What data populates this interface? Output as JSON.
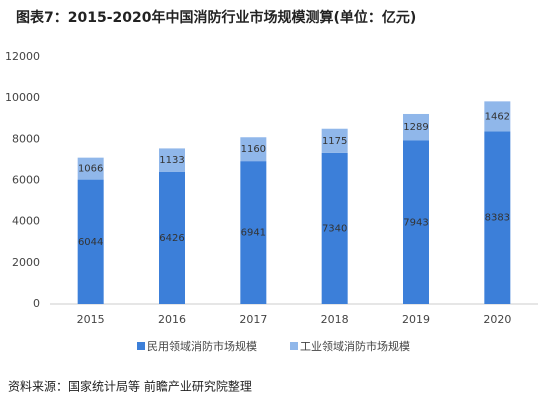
{
  "chart_data": {
    "type": "stacked_bar",
    "title": "图表7：2015-2020年中国消防行业市场规模测算(单位：亿元)",
    "categories": [
      "2015",
      "2016",
      "2017",
      "2018",
      "2019",
      "2020"
    ],
    "series": [
      {
        "name": "民用领域消防市场规模",
        "color": "#3c7fd9",
        "values": [
          6044,
          6426,
          6941,
          7340,
          7943,
          8383
        ]
      },
      {
        "name": "工业领域消防市场规模",
        "color": "#90b7ea",
        "values": [
          1066,
          1133,
          1160,
          1175,
          1289,
          1462
        ]
      }
    ],
    "ylim": [
      0,
      12000
    ],
    "yticks": [
      0,
      2000,
      4000,
      6000,
      8000,
      10000,
      12000
    ],
    "grid": false,
    "legend": "bottom",
    "source": "资料来源：国家统计局等 前瞻产业研究院整理"
  }
}
